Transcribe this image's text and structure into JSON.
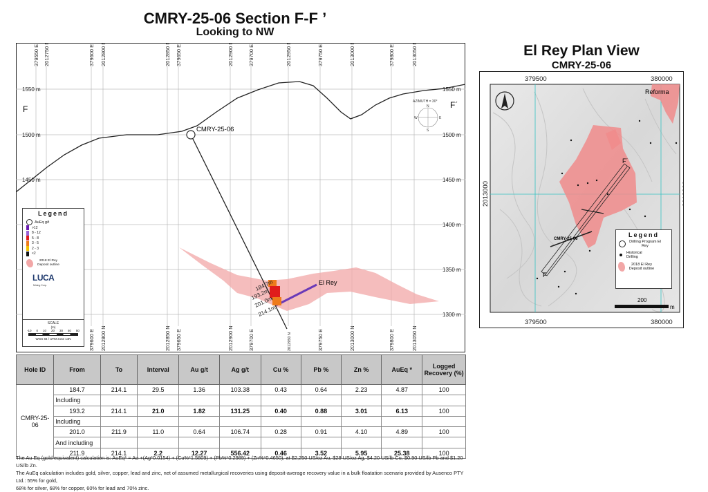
{
  "section": {
    "title": "CMRY-25-06 Section F-F ’",
    "subtitle": "Looking to NW",
    "top_grid_labels": [
      "379550 E",
      "2012750 N",
      "379600 E",
      "2012800 N",
      "2012850 N",
      "379650 E",
      "2012900 N",
      "379700 E",
      "2012950 N",
      "379750 E",
      "2013000 N",
      "379800 E",
      "2013050 N"
    ],
    "bottom_grid_labels": [
      "379600 E",
      "2012800 N",
      "2012850 N",
      "379650 E",
      "2012900 N",
      "379700 E",
      "2012950 N",
      "379750 E",
      "2013000 N",
      "379800 E",
      "2013050 N"
    ],
    "elevations": [
      "1550 m",
      "1500 m",
      "1450 m",
      "1400 m",
      "1350 m",
      "1300 m"
    ],
    "left_end": "F",
    "right_end": "F´",
    "hole_label": "CMRY-25-06",
    "deposit_label": "El Rey",
    "depths": [
      "184.7m",
      "193.2m",
      "201.0m",
      "214.1m"
    ],
    "compass": {
      "azimuth": "AZIMUTH = 30°",
      "n": "N",
      "s": "S",
      "e": "E",
      "w": "W"
    },
    "legend": {
      "title": "Legend",
      "header": "AuEq g/t",
      "items": [
        {
          "label": ">12",
          "color": "#6a1bb0"
        },
        {
          "label": "8 - 12",
          "color": "#9a62d6"
        },
        {
          "label": "5 - 8",
          "color": "#e01c1c"
        },
        {
          "label": "3 - 5",
          "color": "#ee7b1c"
        },
        {
          "label": "2 - 3",
          "color": "#f2c200"
        },
        {
          "label": "<2",
          "color": "#111111"
        }
      ],
      "deposit": "2018 El Rey Deposit outline",
      "logo": "LUCA",
      "logo_sub": "Mining Corp.",
      "scale_title": "SCALE",
      "scale_unit": "(m)",
      "scale_ticks": [
        "-10",
        "0",
        "10",
        "20",
        "30",
        "40",
        "50"
      ],
      "datum": "WGS 84 / UTM zone 14N"
    }
  },
  "plan": {
    "title": "El Rey Plan View",
    "subtitle": "CMRY-25-06",
    "top_labels": [
      "379500",
      "380000"
    ],
    "bottom_labels": [
      "379500",
      "380000"
    ],
    "left_label": "2013000",
    "right_label": "2013000",
    "place": "Reforma",
    "hole_label": "CMRY-25-06",
    "f": "F",
    "f_prime": "F´",
    "scale_label": "200",
    "scale_unit": "m",
    "legend": {
      "title": "Legend",
      "drill": "Drilling Program El Rey",
      "historical": "Historical Drilling",
      "deposit": "2018 El Rey Deposit outline"
    }
  },
  "table": {
    "headers": [
      "Hole ID",
      "From",
      "To",
      "Interval",
      "Au g/t",
      "Ag g/t",
      "Cu %",
      "Pb %",
      "Zn %",
      "AuEq *",
      "Logged Recovery (%)"
    ],
    "hole_id": "CMRY-25-06",
    "rows": [
      [
        "184.7",
        "214.1",
        "29.5",
        "1.36",
        "103.38",
        "0.43",
        "0.64",
        "2.23",
        "4.87",
        "100"
      ],
      [
        "193.2",
        "214.1",
        "21.0",
        "1.82",
        "131.25",
        "0.40",
        "0.88",
        "3.01",
        "6.13",
        "100"
      ],
      [
        "201.0",
        "211.9",
        "11.0",
        "0.64",
        "106.74",
        "0.28",
        "0.91",
        "4.10",
        "4.89",
        "100"
      ],
      [
        "211.9",
        "214.1",
        "2.2",
        "12.27",
        "556.42",
        "0.46",
        "3.52",
        "5.95",
        "25.38",
        "100"
      ]
    ],
    "sub_labels": [
      "Including",
      "Including",
      "And including"
    ]
  },
  "footnotes": [
    "The Au Eq (gold equivalent) calculation is: AuEq* = Au +(Ag*0.0154) + (Cu%*1.5809) + (Pb%*0.2989) + (Zn%*0.4650), at $2,250 US/oz Au, $28 US/oz Ag, $4.20 US/lb Cu, $0.90 US/lb Pb and $1.20 US/lb Zn.",
    "The AuEq calculation includes gold, silver, copper, lead and zinc, net of assumed metallurgical recoveries using deposit-average recovery value in a bulk floatation scenario provided by Ausenco PTY Ltd.: 55% for gold,",
    "68% for silver, 68% for copper, 60% for lead and 70% zinc."
  ]
}
